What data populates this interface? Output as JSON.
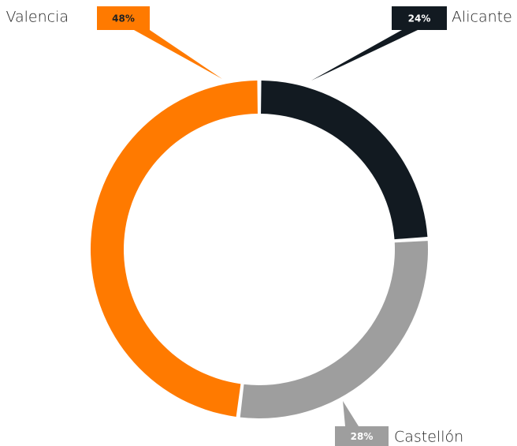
{
  "chart_data": {
    "type": "donut",
    "categories": [
      "Alicante",
      "Castellón",
      "Valencia"
    ],
    "values": [
      24,
      28,
      48
    ],
    "value_labels": [
      "24%",
      "28%",
      "48%"
    ],
    "colors": [
      "#121a21",
      "#9e9e9e",
      "#ff7a00"
    ]
  }
}
